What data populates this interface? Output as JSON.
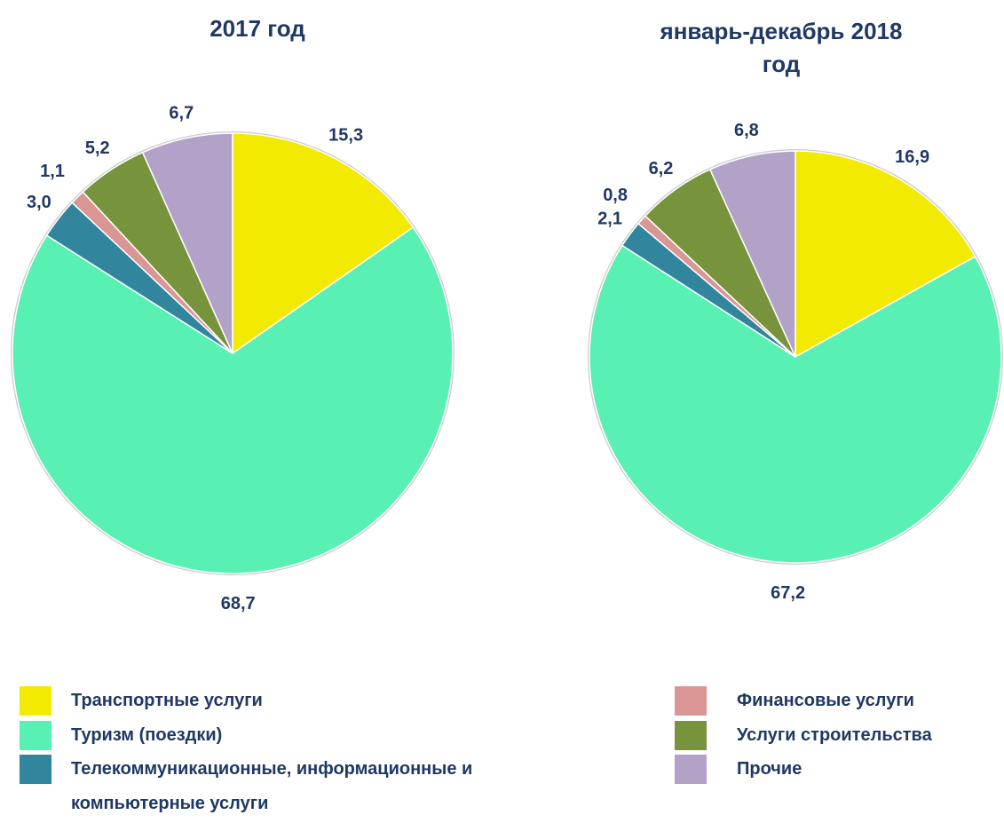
{
  "chart_data": [
    {
      "type": "pie",
      "title": "2017 год",
      "categories": [
        "Транспортные услуги",
        "Туризм (поездки)",
        "Телекоммуникационные, информационные и компьютерные услуги",
        "Финансовые услуги",
        "Услуги строительства",
        "Прочие"
      ],
      "values": [
        15.3,
        68.7,
        3.0,
        1.1,
        5.2,
        6.7
      ],
      "value_labels": [
        "15,3",
        "68,7",
        "3,0",
        "1,1",
        "5,2",
        "6,7"
      ],
      "colors": [
        "#f2ea00",
        "#59f0b4",
        "#31859c",
        "#d99694",
        "#77933c",
        "#b3a2c7"
      ]
    },
    {
      "type": "pie",
      "title": "январь-декабрь 2018 год",
      "categories": [
        "Транспортные услуги",
        "Туризм (поездки)",
        "Телекоммуникационные, информационные и компьютерные услуги",
        "Финансовые услуги",
        "Услуги строительства",
        "Прочие"
      ],
      "values": [
        16.9,
        67.2,
        2.1,
        0.8,
        6.2,
        6.8
      ],
      "value_labels": [
        "16,9",
        "67,2",
        "2,1",
        "0,8",
        "6,2",
        "6,8"
      ],
      "colors": [
        "#f2ea00",
        "#59f0b4",
        "#31859c",
        "#d99694",
        "#77933c",
        "#b3a2c7"
      ]
    }
  ]
}
